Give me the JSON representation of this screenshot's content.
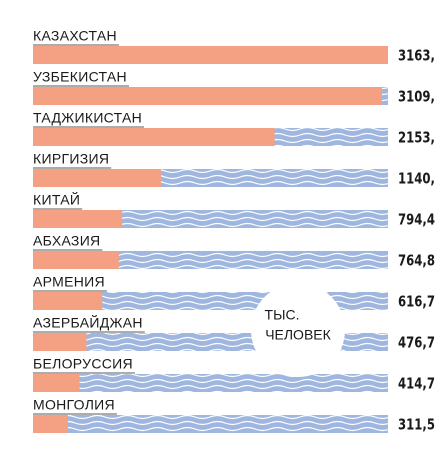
{
  "chart_data": {
    "type": "bar",
    "orientation": "horizontal",
    "categories": [
      "КАЗАХСТАН",
      "УЗБЕКИСТАН",
      "ТАДЖИКИСТАН",
      "КИРГИЗИЯ",
      "КИТАЙ",
      "АБХАЗИЯ",
      "АРМЕНИЯ",
      "АЗЕРБАЙДЖАН",
      "БЕЛОРУССИЯ",
      "МОНГОЛИЯ"
    ],
    "values": [
      3163,
      3109,
      2153,
      1140,
      794.4,
      764.8,
      616.7,
      476.7,
      414.7,
      311.5
    ],
    "value_labels": [
      "3163,",
      "3109,",
      "2153,",
      "1140,",
      "794,4",
      "764,8",
      "616,7",
      "476,7",
      "414,7",
      "311,5"
    ],
    "color": "#f4a183",
    "background_color": "#9fb6df",
    "unit_label": [
      "ТЫС.",
      "ЧЕЛОВЕК"
    ]
  }
}
